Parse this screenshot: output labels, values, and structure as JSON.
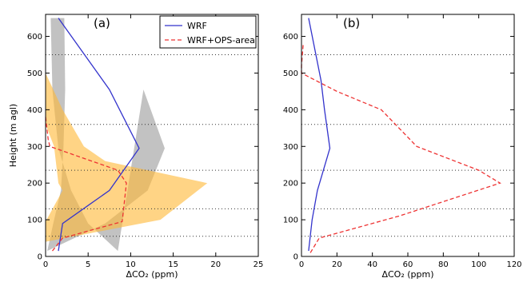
{
  "chart_data": [
    {
      "type": "line",
      "panel_label": "(a)",
      "xlabel": "ΔCO₂ (ppm)",
      "ylabel": "Height (m agl)",
      "xlim": [
        0,
        25
      ],
      "ylim": [
        0,
        660
      ],
      "xticks": [
        0,
        5,
        10,
        15,
        20,
        25
      ],
      "yticks": [
        0,
        100,
        200,
        300,
        400,
        500,
        600
      ],
      "grid": false,
      "legend_position": "top-right",
      "reference_lines_y": [
        55,
        130,
        235,
        360,
        550
      ],
      "series": [
        {
          "name": "WRF",
          "style": "solid",
          "color": "#3333cc",
          "x": [
            1.5,
            2,
            7.5,
            11,
            7.5,
            1.5
          ],
          "y": [
            15,
            90,
            180,
            295,
            455,
            650
          ]
        },
        {
          "name": "WRF+OPS-area",
          "style": "dashed",
          "color": "#ee3333",
          "x": [
            0.8,
            2,
            9,
            9.5,
            8.5,
            0.5,
            0.3,
            0
          ],
          "y": [
            15,
            50,
            95,
            200,
            235,
            300,
            320,
            380
          ]
        }
      ],
      "bands": [
        {
          "color": "#999999",
          "opacity": 0.6,
          "x": [
            0.6,
            0.8,
            1.5,
            3,
            5,
            8.5,
            11.5,
            14,
            12,
            7,
            0.2,
            0.9,
            1.8,
            2.1,
            2.3,
            2.2
          ],
          "y": [
            650,
            455,
            295,
            180,
            90,
            15,
            455,
            295,
            180,
            90,
            15,
            90,
            180,
            295,
            455,
            650
          ]
        },
        {
          "color": "#ffb733",
          "opacity": 0.6,
          "x": [
            0,
            2,
            4.5,
            7,
            19,
            13.5,
            0,
            0,
            2,
            1.5,
            1,
            0
          ],
          "y": [
            500,
            400,
            300,
            260,
            200,
            100,
            40,
            95,
            180,
            200,
            300,
            360
          ]
        }
      ]
    },
    {
      "type": "line",
      "panel_label": "(b)",
      "xlabel": "ΔCO₂ (ppm)",
      "ylabel": "",
      "xlim": [
        0,
        120
      ],
      "ylim": [
        0,
        660
      ],
      "xticks": [
        0,
        20,
        40,
        60,
        80,
        100,
        120
      ],
      "yticks": [
        0,
        100,
        200,
        300,
        400,
        500,
        600
      ],
      "grid": false,
      "reference_lines_y": [
        55,
        130,
        235,
        360,
        550
      ],
      "series": [
        {
          "name": "WRF",
          "style": "solid",
          "color": "#3333cc",
          "x": [
            4,
            6,
            9,
            16,
            13,
            11,
            4
          ],
          "y": [
            15,
            100,
            180,
            295,
            400,
            480,
            650
          ]
        },
        {
          "name": "WRF+OPS-area",
          "style": "dashed",
          "color": "#ee3333",
          "x": [
            5,
            10,
            55,
            112,
            100,
            65,
            45,
            20,
            0,
            0,
            1
          ],
          "y": [
            10,
            50,
            110,
            200,
            235,
            300,
            400,
            450,
            500,
            520,
            580
          ]
        }
      ]
    }
  ]
}
